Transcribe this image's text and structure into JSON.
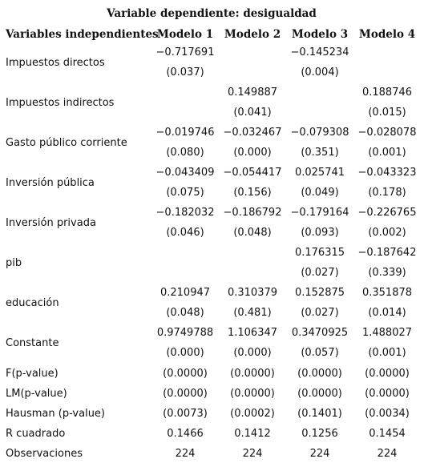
{
  "title": "Variable dependiente: desigualdad",
  "header": [
    "Variables independientes",
    "Modelo 1",
    "Modelo 2",
    "Modelo 3",
    "Modelo 4"
  ],
  "paired_rows": [
    {
      "label": "Impuestos directos",
      "coef": [
        "−0.717691",
        null,
        "−0.145234",
        null
      ],
      "se": [
        "(0.037)",
        null,
        "(0.004)",
        null
      ]
    },
    {
      "label": "Impuestos indirectos",
      "coef": [
        null,
        "0.149887",
        null,
        "0.188746"
      ],
      "se": [
        null,
        "(0.041)",
        null,
        "(0.015)"
      ]
    },
    {
      "label": "Gasto público corriente",
      "coef": [
        "−0.019746",
        "−0.032467",
        "−0.079308",
        "−0.028078"
      ],
      "se": [
        "(0.080)",
        "(0.000)",
        "(0.351)",
        "(0.001)"
      ]
    },
    {
      "label": "Inversión pública",
      "coef": [
        "−0.043409",
        "−0.054417",
        "0.025741",
        "−0.043323"
      ],
      "se": [
        "(0.075)",
        "(0.156)",
        "(0.049)",
        "(0.178)"
      ]
    },
    {
      "label": "Inversión privada",
      "coef": [
        "−0.182032",
        "−0.186792",
        "−0.179164",
        "−0.226765"
      ],
      "se": [
        "(0.046)",
        "(0.048)",
        "(0.093)",
        "(0.002)"
      ]
    },
    {
      "label": "pib",
      "coef": [
        null,
        null,
        "0.176315",
        "−0.187642"
      ],
      "se": [
        null,
        null,
        "(0.027)",
        "(0.339)"
      ]
    },
    {
      "label": "educación",
      "coef": [
        "0.210947",
        "0.310379",
        "0.152875",
        "0.351878"
      ],
      "se": [
        "(0.048)",
        "(0.481)",
        "(0.027)",
        "(0.014)"
      ]
    },
    {
      "label": "Constante",
      "coef": [
        "0.9749788",
        "1.106347",
        "0.3470925",
        "1.488027"
      ],
      "se": [
        "(0.000)",
        "(0.000)",
        "(0.057)",
        "(0.001)"
      ]
    }
  ],
  "single_rows": [
    {
      "label": "F(p-value)",
      "cells": [
        "(0.0000)",
        "(0.0000)",
        "(0.0000)",
        "(0.0000)"
      ]
    },
    {
      "label": "LM(p-value)",
      "cells": [
        "(0.0000)",
        "(0.0000)",
        "(0.0000)",
        "(0.0000)"
      ]
    },
    {
      "label": "Hausman (p-value)",
      "cells": [
        "(0.0073)",
        "(0.0002)",
        "(0.1401)",
        "(0.0034)"
      ]
    },
    {
      "label": "R cuadrado",
      "cells": [
        "0.1466",
        "0.1412",
        "0.1256",
        "0.1454"
      ]
    },
    {
      "label": "Observaciones",
      "cells": [
        "224",
        "224",
        "224",
        "224"
      ]
    }
  ]
}
